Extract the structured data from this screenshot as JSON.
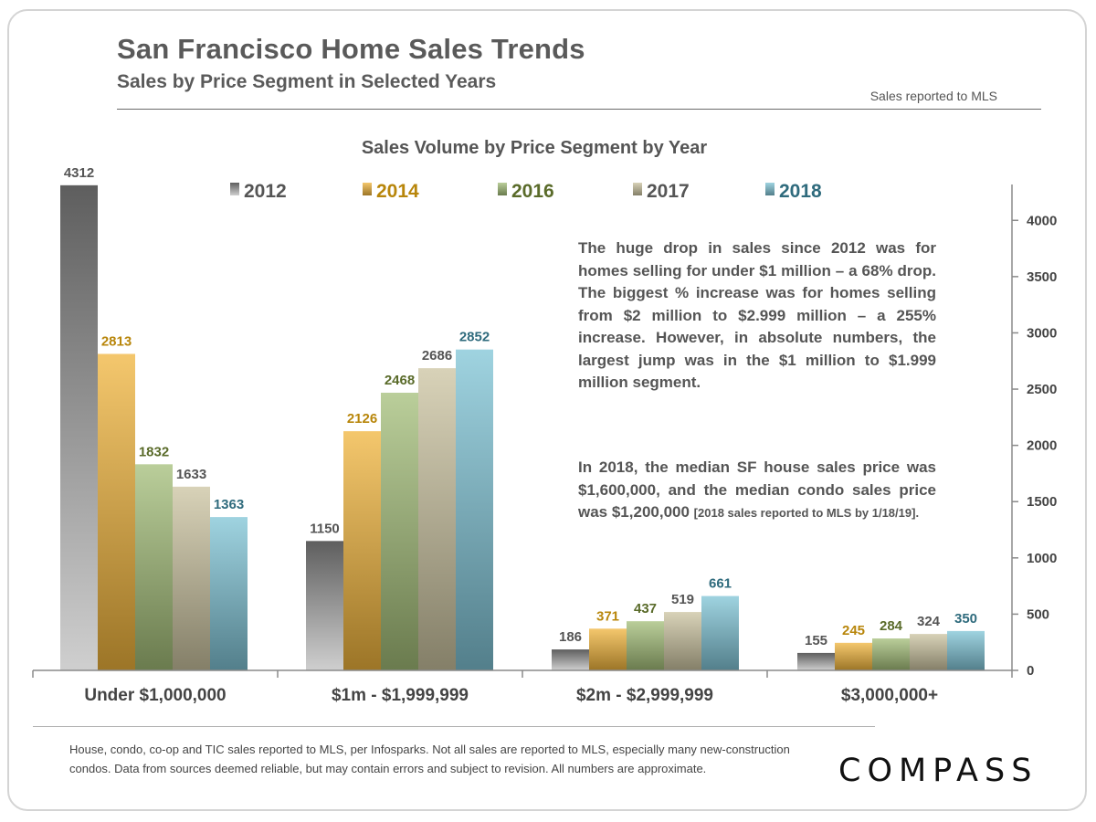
{
  "header": {
    "title": "San Francisco Home Sales Trends",
    "subtitle": "Sales by Price Segment in Selected Years",
    "source_note": "Sales reported to MLS"
  },
  "annotation": {
    "paragraph1": "The huge drop in sales since 2012 was for homes selling for under $1 million – a 68% drop. The biggest % increase was for homes selling from $2 million to $2.999 million – a 255% increase. However, in absolute numbers, the largest jump was in the $1 million to $1.999 million segment.",
    "paragraph2_main": "In 2018, the median SF house sales price was $1,600,000, and the median condo sales price was $1,200,000 ",
    "paragraph2_small": "[2018 sales reported to MLS by 1/18/19]."
  },
  "footer": {
    "footnote": "House, condo, co-op and TIC sales reported to MLS, per Infosparks. Not all sales are reported to MLS, especially many new-construction condos. Data from sources deemed reliable, but may contain errors and subject to revision.  All numbers are approximate.",
    "logo": "COMPASS"
  },
  "chart_data": {
    "type": "bar",
    "title": "Sales Volume by Price Segment by Year",
    "categories": [
      "Under $1,000,000",
      "$1m  - $1,999,999",
      "$2m  - $2,999,999",
      "$3,000,000+"
    ],
    "series": [
      {
        "name": "2012",
        "values": [
          4312,
          1150,
          186,
          155
        ],
        "color": "#777777",
        "label_color": "#555555"
      },
      {
        "name": "2014",
        "values": [
          2813,
          2126,
          371,
          245
        ],
        "color": "#f0b43c",
        "label_color": "#b8860b"
      },
      {
        "name": "2016",
        "values": [
          1832,
          2468,
          437,
          284
        ],
        "color": "#a3bd78",
        "label_color": "#5a6b2a"
      },
      {
        "name": "2017",
        "values": [
          1633,
          2686,
          519,
          324
        ],
        "color": "#cbc3a0",
        "label_color": "#555555"
      },
      {
        "name": "2018",
        "values": [
          1363,
          2852,
          661,
          350
        ],
        "color": "#7fc4d6",
        "label_color": "#2f6b7d"
      }
    ],
    "y_ticks": [
      0,
      500,
      1000,
      1500,
      2000,
      2500,
      3000,
      3500,
      4000
    ],
    "ylim": [
      0,
      4400
    ],
    "y_axis_side": "right",
    "legend": "top",
    "grid": false,
    "data_labels": true
  }
}
